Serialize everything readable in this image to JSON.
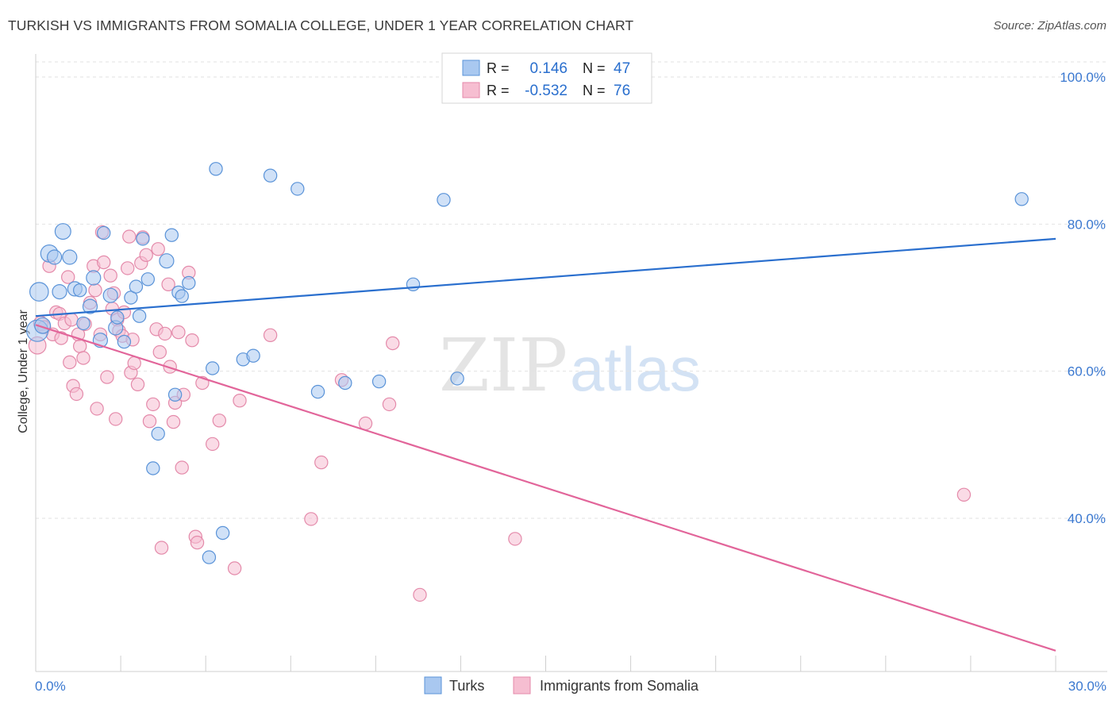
{
  "header": {
    "title": "TURKISH VS IMMIGRANTS FROM SOMALIA COLLEGE, UNDER 1 YEAR CORRELATION CHART",
    "source": "Source: ZipAtlas.com"
  },
  "watermark": {
    "part1": "ZIP",
    "part2": "atlas"
  },
  "colors": {
    "turks_fill": "#a9c8f0",
    "turks_stroke": "#5a93d8",
    "turks_line": "#2a6fce",
    "somalia_fill": "#f6bed1",
    "somalia_stroke": "#e48aaa",
    "somalia_line": "#e2659a",
    "axis_text": "#3a78d0"
  },
  "legend_top": {
    "rows": [
      {
        "r_label": "R =",
        "r_value": "0.146",
        "n_label": "N =",
        "n_value": "47"
      },
      {
        "r_label": "R =",
        "r_value": "-0.532",
        "n_label": "N =",
        "n_value": "76"
      }
    ]
  },
  "legend_bottom": {
    "items": [
      "Turks",
      "Immigrants from Somalia"
    ]
  },
  "chart_data": {
    "type": "scatter",
    "title": "TURKISH VS IMMIGRANTS FROM SOMALIA COLLEGE, UNDER 1 YEAR CORRELATION CHART",
    "xlabel": "",
    "ylabel": "College, Under 1 year",
    "xlim": [
      0,
      30
    ],
    "ylim": [
      20,
      102
    ],
    "x_tick_labels": [
      "0.0%",
      "30.0%"
    ],
    "y_ticks": [
      40,
      60,
      80,
      100
    ],
    "y_tick_labels": [
      "40.0%",
      "60.0%",
      "80.0%",
      "100.0%"
    ],
    "grid": true,
    "legend": "bottom-center",
    "series": [
      {
        "name": "Turks",
        "r": 0.146,
        "n": 47,
        "trend": {
          "x": [
            0,
            30
          ],
          "y": [
            67.5,
            78.0
          ]
        },
        "points": [
          [
            0.05,
            65.5,
            1.5
          ],
          [
            0.1,
            70.8,
            1.3
          ],
          [
            0.2,
            66.2,
            1.1
          ],
          [
            0.4,
            76.0,
            1.2
          ],
          [
            0.55,
            75.5,
            1.0
          ],
          [
            0.7,
            70.8,
            1.0
          ],
          [
            0.8,
            79.0,
            1.1
          ],
          [
            1.0,
            75.5,
            1.0
          ],
          [
            1.15,
            71.2,
            1.0
          ],
          [
            1.3,
            71.0,
            0.9
          ],
          [
            1.4,
            66.5,
            0.9
          ],
          [
            1.6,
            68.8,
            1.0
          ],
          [
            1.7,
            72.7,
            1.0
          ],
          [
            1.9,
            64.2,
            1.0
          ],
          [
            2.0,
            78.8,
            0.9
          ],
          [
            2.2,
            70.3,
            1.0
          ],
          [
            2.35,
            65.9,
            1.0
          ],
          [
            2.4,
            67.3,
            0.9
          ],
          [
            2.6,
            64.0,
            0.9
          ],
          [
            2.8,
            70.0,
            0.9
          ],
          [
            2.95,
            71.5,
            0.9
          ],
          [
            3.05,
            67.5,
            0.9
          ],
          [
            3.15,
            78.0,
            0.9
          ],
          [
            3.3,
            72.5,
            0.9
          ],
          [
            3.6,
            51.5,
            0.9
          ],
          [
            3.85,
            75.0,
            1.0
          ],
          [
            4.0,
            78.5,
            0.9
          ],
          [
            4.1,
            56.8,
            0.9
          ],
          [
            4.2,
            70.7,
            0.9
          ],
          [
            4.3,
            70.2,
            0.9
          ],
          [
            4.5,
            72.0,
            0.9
          ],
          [
            3.45,
            46.8,
            0.9
          ],
          [
            5.2,
            60.4,
            0.9
          ],
          [
            5.3,
            87.5,
            0.9
          ],
          [
            5.5,
            38.0,
            0.9
          ],
          [
            5.1,
            34.7,
            0.9
          ],
          [
            6.1,
            61.6,
            0.9
          ],
          [
            6.4,
            62.1,
            0.9
          ],
          [
            6.9,
            86.6,
            0.9
          ],
          [
            7.7,
            84.8,
            0.9
          ],
          [
            8.3,
            57.2,
            0.9
          ],
          [
            9.1,
            58.4,
            0.9
          ],
          [
            10.1,
            58.6,
            0.9
          ],
          [
            11.1,
            71.8,
            0.9
          ],
          [
            12.0,
            83.3,
            0.9
          ],
          [
            12.4,
            59.0,
            0.9
          ],
          [
            29.0,
            83.4,
            0.9
          ]
        ]
      },
      {
        "name": "Immigrants from Somalia",
        "r": -0.532,
        "n": 76,
        "trend": {
          "x": [
            0,
            30
          ],
          "y": [
            66.3,
            22.0
          ]
        },
        "points": [
          [
            0.05,
            63.5,
            1.2
          ],
          [
            0.15,
            66.5,
            1.0
          ],
          [
            0.25,
            66.0,
            0.9
          ],
          [
            0.4,
            74.3,
            0.9
          ],
          [
            0.5,
            65.0,
            0.9
          ],
          [
            0.6,
            68.0,
            0.9
          ],
          [
            0.7,
            67.8,
            0.9
          ],
          [
            0.75,
            64.5,
            0.9
          ],
          [
            0.85,
            66.5,
            0.9
          ],
          [
            0.95,
            72.8,
            0.9
          ],
          [
            1.0,
            61.2,
            0.9
          ],
          [
            1.05,
            67.0,
            0.9
          ],
          [
            1.1,
            58.0,
            0.9
          ],
          [
            1.2,
            56.9,
            0.9
          ],
          [
            1.25,
            65.0,
            0.9
          ],
          [
            1.3,
            63.4,
            0.9
          ],
          [
            1.4,
            61.8,
            0.9
          ],
          [
            1.45,
            66.4,
            0.9
          ],
          [
            1.6,
            69.3,
            0.9
          ],
          [
            1.7,
            74.3,
            0.9
          ],
          [
            1.75,
            71.0,
            0.9
          ],
          [
            1.8,
            54.9,
            0.9
          ],
          [
            1.9,
            65.0,
            0.9
          ],
          [
            1.95,
            78.9,
            0.9
          ],
          [
            2.0,
            74.8,
            0.9
          ],
          [
            2.1,
            59.2,
            0.9
          ],
          [
            2.2,
            73.0,
            0.9
          ],
          [
            2.25,
            68.5,
            0.9
          ],
          [
            2.3,
            70.6,
            0.9
          ],
          [
            2.35,
            53.5,
            0.9
          ],
          [
            2.4,
            67.0,
            0.9
          ],
          [
            2.45,
            65.5,
            0.9
          ],
          [
            2.55,
            64.8,
            0.9
          ],
          [
            2.6,
            68.0,
            0.9
          ],
          [
            2.7,
            74.0,
            0.9
          ],
          [
            2.75,
            78.3,
            0.9
          ],
          [
            2.8,
            59.8,
            0.9
          ],
          [
            2.85,
            64.3,
            0.9
          ],
          [
            2.9,
            61.1,
            0.9
          ],
          [
            3.0,
            58.2,
            0.9
          ],
          [
            3.1,
            74.7,
            0.9
          ],
          [
            3.15,
            78.2,
            0.9
          ],
          [
            3.25,
            75.8,
            0.9
          ],
          [
            3.35,
            53.2,
            0.9
          ],
          [
            3.45,
            55.5,
            0.9
          ],
          [
            3.55,
            65.7,
            0.9
          ],
          [
            3.65,
            62.6,
            0.9
          ],
          [
            3.7,
            36.0,
            0.9
          ],
          [
            3.8,
            65.1,
            0.9
          ],
          [
            3.9,
            71.8,
            0.9
          ],
          [
            3.95,
            60.6,
            0.9
          ],
          [
            4.05,
            53.1,
            0.9
          ],
          [
            4.1,
            55.7,
            0.9
          ],
          [
            4.2,
            65.3,
            0.9
          ],
          [
            4.3,
            46.9,
            0.9
          ],
          [
            4.35,
            56.8,
            0.9
          ],
          [
            4.5,
            73.4,
            0.9
          ],
          [
            4.6,
            64.2,
            0.9
          ],
          [
            4.7,
            37.5,
            0.9
          ],
          [
            4.75,
            36.7,
            0.9
          ],
          [
            4.9,
            58.4,
            0.9
          ],
          [
            5.2,
            50.1,
            0.9
          ],
          [
            5.4,
            53.3,
            0.9
          ],
          [
            5.85,
            33.2,
            0.9
          ],
          [
            6.0,
            56.0,
            0.9
          ],
          [
            6.9,
            64.9,
            0.9
          ],
          [
            8.1,
            39.9,
            0.9
          ],
          [
            8.4,
            47.6,
            0.9
          ],
          [
            9.0,
            58.8,
            0.9
          ],
          [
            9.7,
            52.9,
            0.9
          ],
          [
            10.4,
            55.5,
            0.9
          ],
          [
            10.5,
            63.8,
            0.9
          ],
          [
            11.3,
            29.6,
            0.9
          ],
          [
            14.1,
            37.2,
            0.9
          ],
          [
            27.3,
            43.2,
            0.9
          ],
          [
            3.6,
            76.6,
            0.9
          ]
        ]
      }
    ]
  }
}
